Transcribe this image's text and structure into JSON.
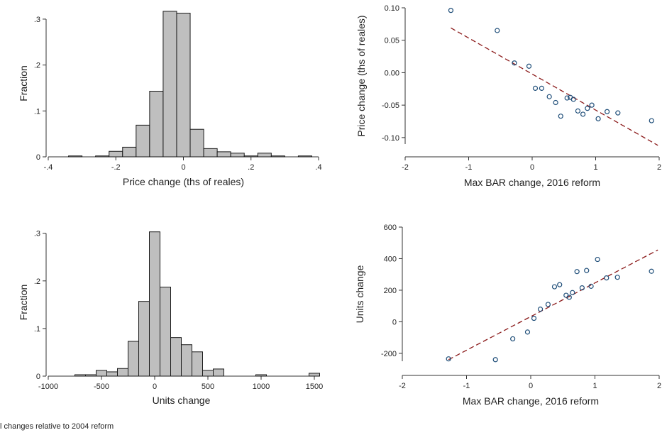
{
  "footnote": "l changes relative to 2004 reform",
  "colors": {
    "bar_fill": "#bfbfbf",
    "bar_stroke": "#1a1a1a",
    "marker": "#1f4e79",
    "fit_line": "#8b1a1a"
  },
  "chart_data": [
    {
      "type": "bar",
      "xlabel": "Price change (ths of reales)",
      "ylabel": "Fraction",
      "xlim": [
        -0.4,
        0.4
      ],
      "ylim": [
        0,
        0.32
      ],
      "xticks": [
        -0.4,
        -0.2,
        0,
        0.2,
        0.4
      ],
      "xtick_labels": [
        "-.4",
        "-.2",
        "0",
        ".2",
        ".4"
      ],
      "yticks": [
        0,
        0.1,
        0.2,
        0.3
      ],
      "ytick_labels": [
        "0",
        ".1",
        ".2",
        ".3"
      ],
      "bin_width": 0.04,
      "bin_starts": [
        -0.34,
        -0.26,
        -0.22,
        -0.18,
        -0.14,
        -0.1,
        -0.06,
        -0.02,
        0.02,
        0.06,
        0.1,
        0.14,
        0.18,
        0.22,
        0.26,
        0.3,
        0.34
      ],
      "values": [
        0.002,
        0.002,
        0.012,
        0.021,
        0.069,
        0.143,
        0.317,
        0.313,
        0.06,
        0.018,
        0.011,
        0.008,
        0.002,
        0.008,
        0.002,
        0,
        0.002
      ]
    },
    {
      "type": "scatter",
      "xlabel": "Max BAR change, 2016 reform",
      "ylabel": "Price change (ths of reales)",
      "xlim": [
        -2,
        2
      ],
      "ylim": [
        -0.11,
        0.1
      ],
      "xticks": [
        -2,
        -1,
        0,
        1,
        2
      ],
      "xtick_labels": [
        "-2",
        "-1",
        "0",
        "1",
        "2"
      ],
      "yticks": [
        -0.1,
        -0.05,
        0.0,
        0.05,
        0.1
      ],
      "ytick_labels": [
        "-0.10",
        "-0.05",
        "0.00",
        "0.05",
        "0.10"
      ],
      "points": [
        [
          -1.28,
          0.096
        ],
        [
          -0.55,
          0.065
        ],
        [
          -0.28,
          0.015
        ],
        [
          -0.05,
          0.01
        ],
        [
          0.05,
          -0.024
        ],
        [
          0.15,
          -0.024
        ],
        [
          0.27,
          -0.037
        ],
        [
          0.37,
          -0.046
        ],
        [
          0.45,
          -0.067
        ],
        [
          0.55,
          -0.039
        ],
        [
          0.6,
          -0.038
        ],
        [
          0.65,
          -0.041
        ],
        [
          0.72,
          -0.059
        ],
        [
          0.8,
          -0.064
        ],
        [
          0.87,
          -0.055
        ],
        [
          0.94,
          -0.05
        ],
        [
          1.04,
          -0.071
        ],
        [
          1.18,
          -0.06
        ],
        [
          1.35,
          -0.062
        ],
        [
          1.88,
          -0.074
        ]
      ],
      "fit_line": [
        [
          -1.28,
          0.069
        ],
        [
          1.98,
          -0.112
        ]
      ]
    },
    {
      "type": "bar",
      "xlabel": "Units change",
      "ylabel": "Fraction",
      "xlim": [
        -1000,
        1500
      ],
      "ylim": [
        0,
        0.31
      ],
      "xticks": [
        -1000,
        -500,
        0,
        500,
        1000,
        1500
      ],
      "xtick_labels": [
        "-1000",
        "-500",
        "0",
        "500",
        "1000",
        "1500"
      ],
      "yticks": [
        0,
        0.1,
        0.2,
        0.3
      ],
      "ytick_labels": [
        "0",
        ".1",
        ".2",
        ".3"
      ],
      "bin_width": 100,
      "bin_starts": [
        -750,
        -650,
        -550,
        -450,
        -350,
        -250,
        -150,
        -50,
        50,
        150,
        250,
        350,
        450,
        550,
        650,
        750,
        850,
        950,
        1050,
        1150,
        1250,
        1350,
        1450
      ],
      "values": [
        0.003,
        0.003,
        0.012,
        0.009,
        0.016,
        0.073,
        0.157,
        0.303,
        0.187,
        0.081,
        0.066,
        0.051,
        0.012,
        0.015,
        0,
        0,
        0,
        0.003,
        0,
        0,
        0,
        0,
        0.006
      ]
    },
    {
      "type": "scatter",
      "xlabel": "Max BAR change, 2016 reform",
      "ylabel": "Units change",
      "xlim": [
        -2,
        2
      ],
      "ylim": [
        -250,
        600
      ],
      "xticks": [
        -2,
        -1,
        0,
        1,
        2
      ],
      "xtick_labels": [
        "-2",
        "-1",
        "0",
        "1",
        "2"
      ],
      "yticks": [
        -200,
        0,
        200,
        400,
        600
      ],
      "ytick_labels": [
        "-200",
        "0",
        "200",
        "400",
        "600"
      ],
      "points": [
        [
          -1.28,
          -235
        ],
        [
          -0.55,
          -240
        ],
        [
          -0.28,
          -108
        ],
        [
          -0.05,
          -65
        ],
        [
          0.05,
          22
        ],
        [
          0.15,
          80
        ],
        [
          0.27,
          110
        ],
        [
          0.37,
          222
        ],
        [
          0.45,
          235
        ],
        [
          0.55,
          168
        ],
        [
          0.6,
          155
        ],
        [
          0.65,
          185
        ],
        [
          0.72,
          318
        ],
        [
          0.8,
          215
        ],
        [
          0.87,
          325
        ],
        [
          0.94,
          225
        ],
        [
          1.04,
          395
        ],
        [
          1.18,
          278
        ],
        [
          1.35,
          282
        ],
        [
          1.88,
          320
        ]
      ],
      "fit_line": [
        [
          -1.28,
          -240
        ],
        [
          1.98,
          455
        ]
      ]
    }
  ]
}
